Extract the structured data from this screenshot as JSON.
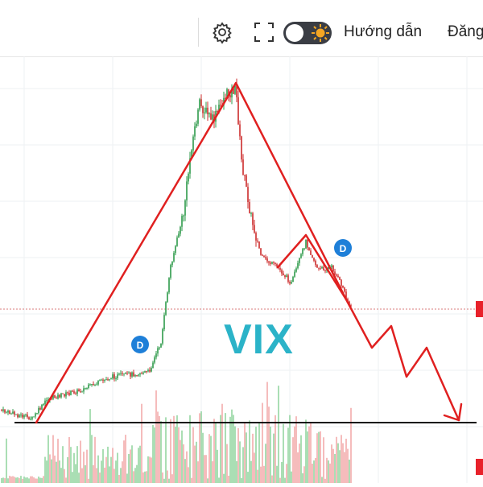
{
  "toolbar": {
    "settings_icon": "gear-icon",
    "fullscreen_icon": "fullscreen-icon",
    "theme_toggle_icon": "sun-icon",
    "guide_label": "Hướng dẫn",
    "login_label": "Đăng"
  },
  "chart": {
    "ticker": "VIX",
    "marker_label": "D",
    "colors": {
      "up": "#2e9a4a",
      "down": "#cc2b2b",
      "annotation": "#e02020",
      "ticker": "#2bb3c8",
      "marker": "#1e7fd8"
    }
  }
}
